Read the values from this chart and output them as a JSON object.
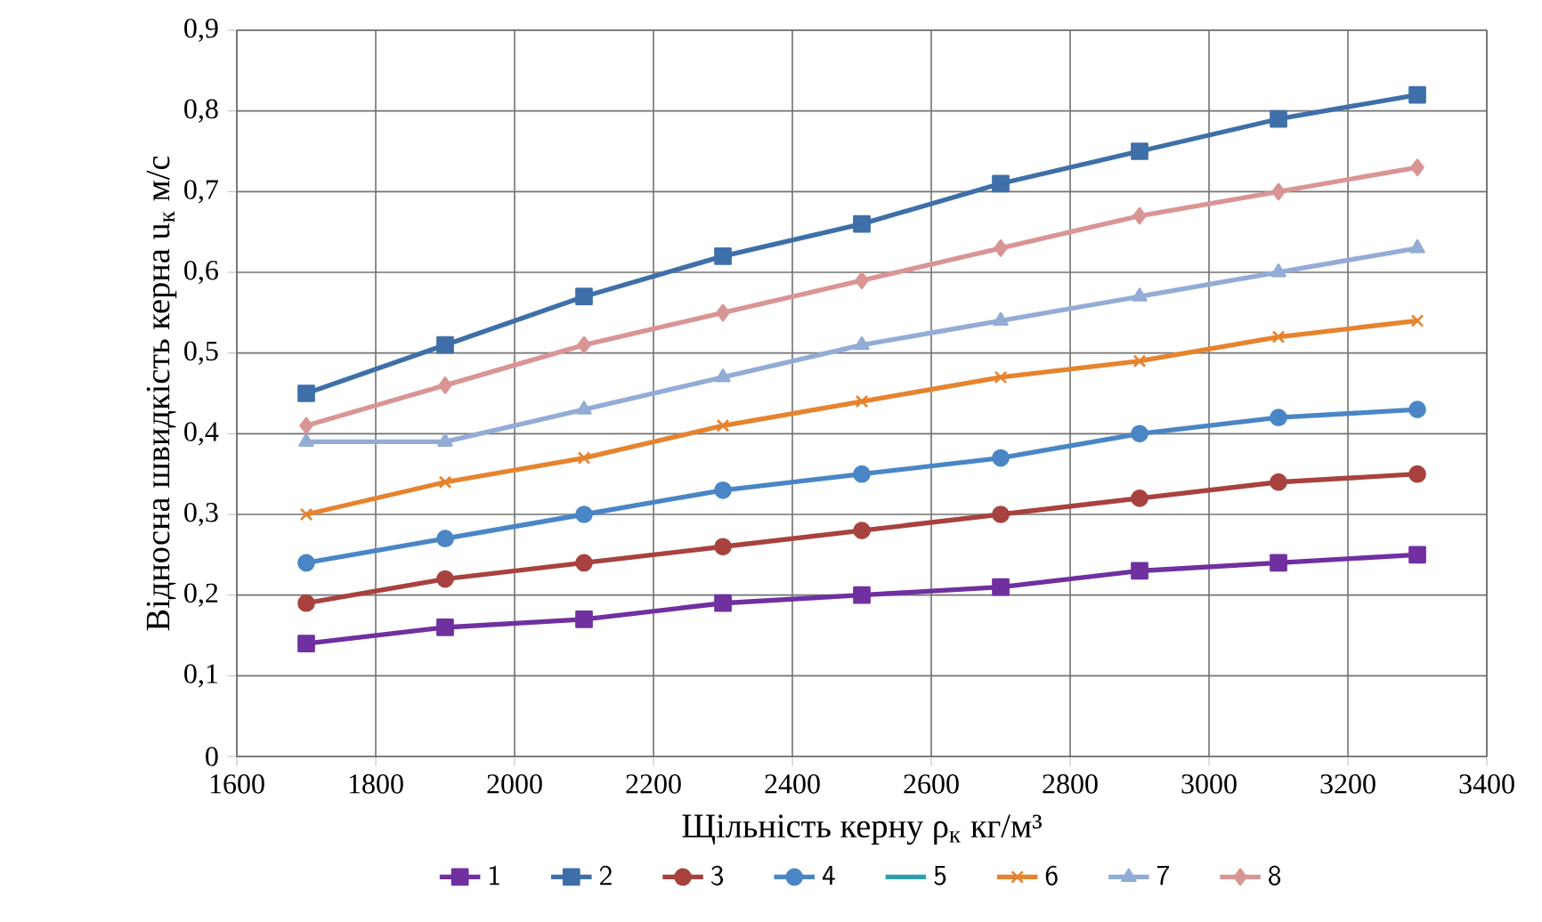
{
  "chart_data": {
    "type": "line",
    "xlabel": "Щільність керну ρ$_{к}$ кг/м³",
    "ylabel": "Відносна швидкість керна u$_{к}$ м/с",
    "x": [
      1700,
      1900,
      2100,
      2300,
      2500,
      2700,
      2900,
      3100,
      3300
    ],
    "xlim": [
      1600,
      3400
    ],
    "xticks": [
      1600,
      1800,
      2000,
      2200,
      2400,
      2600,
      2800,
      3000,
      3200,
      3400
    ],
    "ylim": [
      0,
      0.9
    ],
    "yticks": [
      0,
      {
        "value": 0.1,
        "label": "0,1"
      },
      {
        "value": 0.2,
        "label": "0,2"
      },
      {
        "value": 0.3,
        "label": "0,3"
      },
      {
        "value": 0.4,
        "label": "0,4"
      },
      {
        "value": 0.5,
        "label": "0,5"
      },
      {
        "value": 0.6,
        "label": "0,6"
      },
      {
        "value": 0.7,
        "label": "0,7"
      },
      {
        "value": 0.8,
        "label": "0,8"
      },
      {
        "value": 0.9,
        "label": "0,9"
      }
    ],
    "grid": true,
    "legend": "bottom",
    "series": [
      {
        "name": "1",
        "color": "#7030a0",
        "marker": "square",
        "values": [
          0.14,
          0.16,
          0.17,
          0.19,
          0.2,
          0.21,
          0.23,
          0.24,
          0.25
        ]
      },
      {
        "name": "2",
        "color": "#3f6fa8",
        "marker": "square",
        "values": [
          0.45,
          0.51,
          0.57,
          0.62,
          0.66,
          0.71,
          0.75,
          0.79,
          0.82
        ]
      },
      {
        "name": "3",
        "color": "#a8423f",
        "marker": "circle",
        "values": [
          0.19,
          0.22,
          0.24,
          0.26,
          0.28,
          0.3,
          0.32,
          0.34,
          0.35
        ]
      },
      {
        "name": "4",
        "color": "#4a86c5",
        "marker": "circle",
        "values": [
          0.24,
          0.27,
          0.3,
          0.33,
          0.35,
          0.37,
          0.4,
          0.42,
          0.43
        ]
      },
      {
        "name": "5",
        "color": "#2f9fad",
        "marker": "none",
        "values": [
          null,
          null,
          null,
          null,
          null,
          null,
          null,
          null,
          null
        ]
      },
      {
        "name": "6",
        "color": "#e6832f",
        "marker": "cross",
        "values": [
          0.3,
          0.34,
          0.37,
          0.41,
          0.44,
          0.47,
          0.49,
          0.52,
          0.54
        ]
      },
      {
        "name": "7",
        "color": "#93acd6",
        "marker": "triangle",
        "values": [
          0.39,
          0.39,
          0.43,
          0.47,
          0.51,
          0.54,
          0.57,
          0.6,
          0.63
        ]
      },
      {
        "name": "8",
        "color": "#d99594",
        "marker": "diamond",
        "values": [
          0.41,
          0.46,
          0.51,
          0.55,
          0.59,
          0.63,
          0.67,
          0.7,
          0.73
        ]
      }
    ]
  }
}
